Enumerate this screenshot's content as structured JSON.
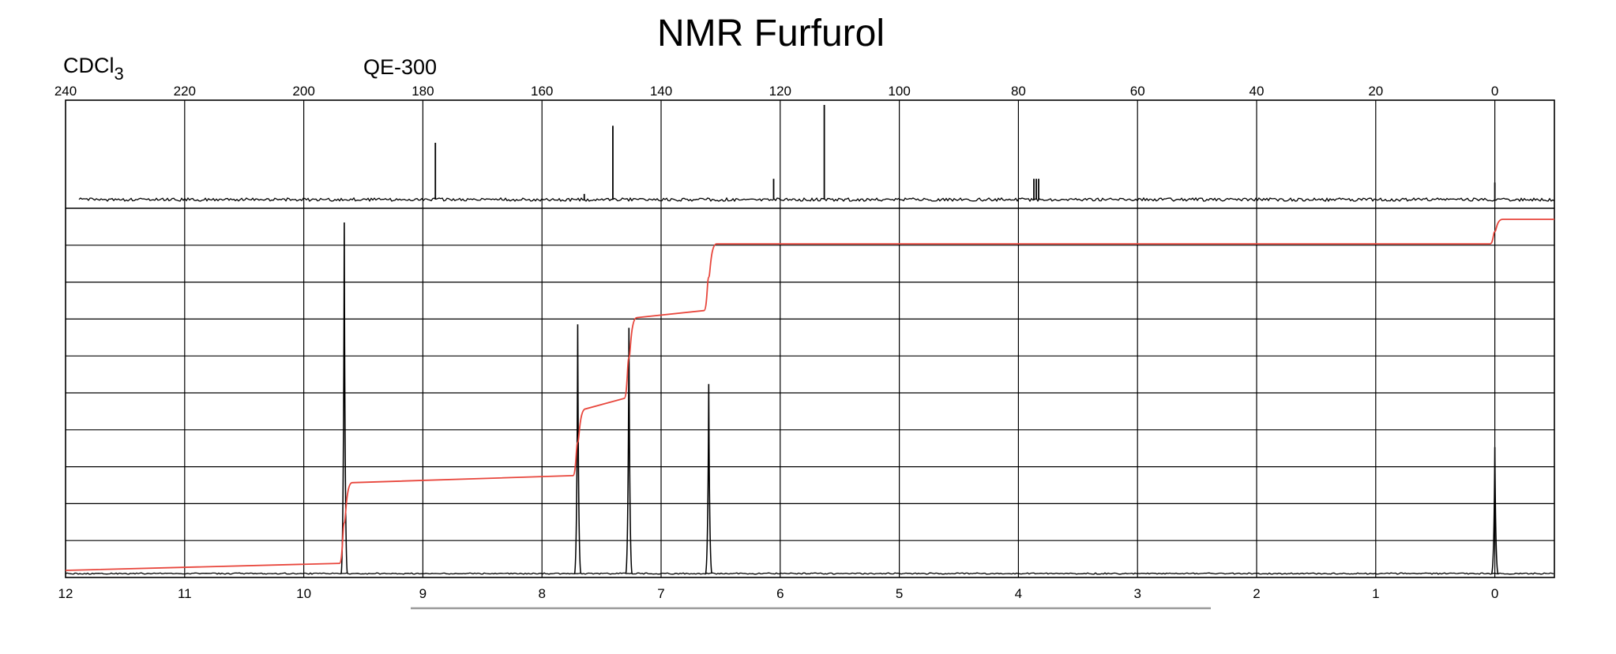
{
  "chart_data": {
    "type": "line",
    "title": "NMR Furfurol",
    "solvent": "CDCl",
    "solvent_sub": "3",
    "instrument": "QE-300",
    "grid": true,
    "colors": {
      "spectrum": "#000000",
      "integral": "#e8463c",
      "grid": "#000000",
      "footer_bar": "#999999"
    },
    "c13": {
      "axis_position": "top",
      "ticks": [
        "240",
        "220",
        "200",
        "180",
        "160",
        "140",
        "120",
        "100",
        "80",
        "60",
        "40",
        "20",
        "0"
      ],
      "xlim": [
        240,
        -10
      ],
      "peaks": [
        {
          "ppm": 177.9,
          "height": 0.6
        },
        {
          "ppm": 152.9,
          "height": 0.06
        },
        {
          "ppm": 148.1,
          "height": 0.78
        },
        {
          "ppm": 121.1,
          "height": 0.22
        },
        {
          "ppm": 112.6,
          "height": 1.0
        },
        {
          "ppm": 77.4,
          "height": 0.22
        },
        {
          "ppm": 77.0,
          "height": 0.22
        },
        {
          "ppm": 76.6,
          "height": 0.22
        },
        {
          "ppm": 0.0,
          "height": 0.18
        }
      ]
    },
    "h1": {
      "axis_position": "bottom",
      "ticks": [
        "12",
        "11",
        "10",
        "9",
        "8",
        "7",
        "6",
        "5",
        "4",
        "3",
        "2",
        "1",
        "0"
      ],
      "xlim": [
        12,
        -0.5
      ],
      "peaks": [
        {
          "ppm": 9.66,
          "height": 1.0
        },
        {
          "ppm": 7.7,
          "height": 0.71
        },
        {
          "ppm": 7.27,
          "height": 0.7
        },
        {
          "ppm": 6.6,
          "height": 0.54
        },
        {
          "ppm": 0.0,
          "height": 0.36
        }
      ],
      "integral": {
        "steps": [
          {
            "ppm": 9.66,
            "start": 0.02,
            "end": 0.25
          },
          {
            "ppm": 7.7,
            "start": 0.27,
            "end": 0.46
          },
          {
            "ppm": 7.27,
            "start": 0.49,
            "end": 0.72
          },
          {
            "ppm": 6.6,
            "start": 0.74,
            "end": 0.93
          },
          {
            "ppm": 0.0,
            "start": 0.93,
            "end": 1.0
          }
        ]
      }
    }
  }
}
